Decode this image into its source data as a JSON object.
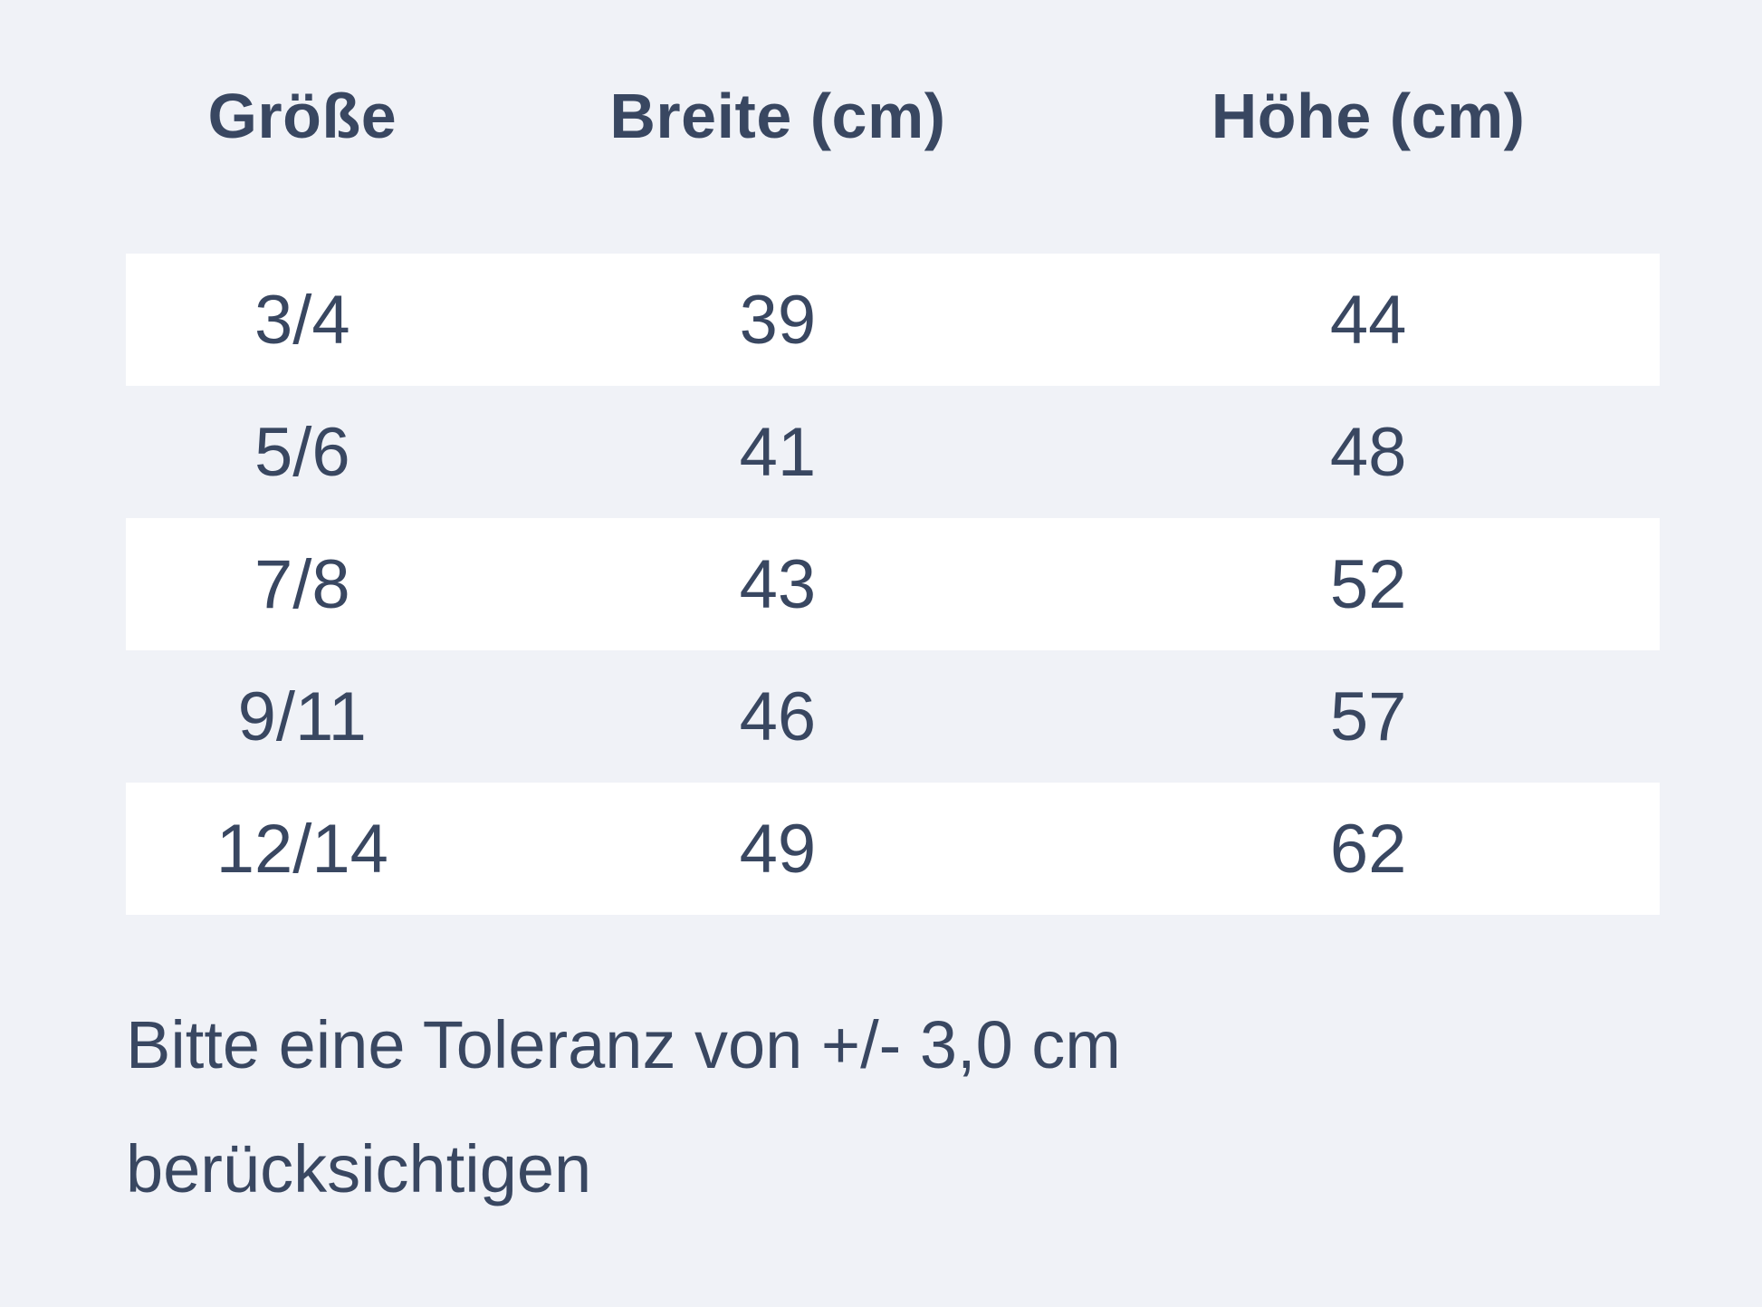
{
  "colors": {
    "page_background": "#f0f2f7",
    "row_band": "#ffffff",
    "text": "#394761"
  },
  "table": {
    "headers": [
      "Größe",
      "Breite (cm)",
      "Höhe (cm)"
    ],
    "rows": [
      [
        "3/4",
        "39",
        "44"
      ],
      [
        "5/6",
        "41",
        "48"
      ],
      [
        "7/8",
        "43",
        "52"
      ],
      [
        "9/11",
        "46",
        "57"
      ],
      [
        "12/14",
        "49",
        "62"
      ]
    ]
  },
  "note": {
    "line1": "Bitte eine Toleranz von +/- 3,0 cm",
    "line2": "berücksichtigen"
  },
  "chart_data": {
    "type": "table",
    "title": "",
    "columns": [
      "Größe",
      "Breite (cm)",
      "Höhe (cm)"
    ],
    "categories": [
      "3/4",
      "5/6",
      "7/8",
      "9/11",
      "12/14"
    ],
    "series": [
      {
        "name": "Breite (cm)",
        "values": [
          39,
          41,
          43,
          46,
          49
        ]
      },
      {
        "name": "Höhe (cm)",
        "values": [
          44,
          48,
          52,
          57,
          62
        ]
      }
    ],
    "annotations": [
      "Bitte eine Toleranz von +/- 3,0 cm berücksichtigen"
    ],
    "layout": {
      "striped_rows": true,
      "grid": false,
      "alignment": "center"
    }
  }
}
